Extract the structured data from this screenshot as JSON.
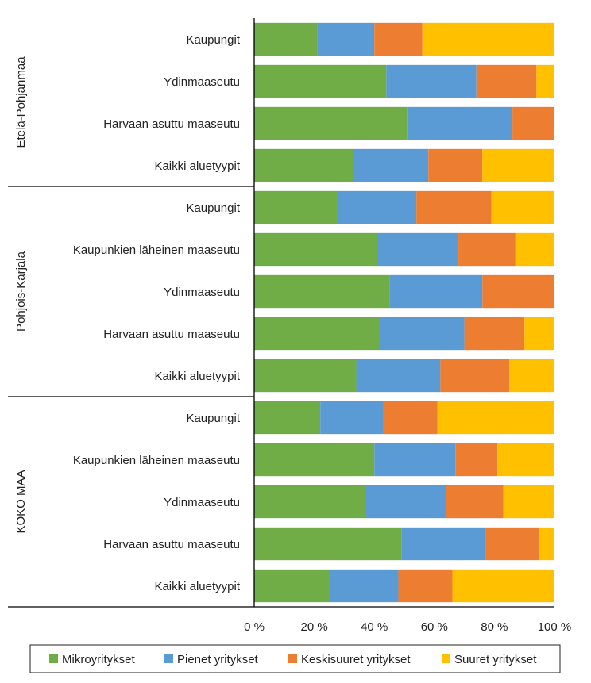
{
  "chart_data": {
    "type": "bar",
    "orientation": "horizontal",
    "stacked": "percent",
    "xlim": [
      0,
      100
    ],
    "x_ticks": [
      "0 %",
      "20 %",
      "40 %",
      "60 %",
      "80 %",
      "100 %"
    ],
    "legend_position": "bottom",
    "groups": [
      {
        "name": "Etelä-Pohjanmaa",
        "categories": [
          "Kaupungit",
          "Ydinmaaseutu",
          "Harvaan asuttu maaseutu",
          "Kaikki aluetyypit"
        ]
      },
      {
        "name": "Pohjois-Karjala",
        "categories": [
          "Kaupungit",
          "Kaupunkien läheinen maaseutu",
          "Ydinmaaseutu",
          "Harvaan asuttu maaseutu",
          "Kaikki aluetyypit"
        ]
      },
      {
        "name": "KOKO MAA",
        "categories": [
          "Kaupungit",
          "Kaupunkien läheinen maaseutu",
          "Ydinmaaseutu",
          "Harvaan asuttu maaseutu",
          "Kaikki aluetyypit"
        ]
      }
    ],
    "series": [
      {
        "name": "Mikroyritykset",
        "color": "#70ad47",
        "values": [
          21,
          44,
          51,
          33,
          28,
          41,
          45,
          42,
          34,
          22,
          40,
          37,
          49,
          25
        ]
      },
      {
        "name": "Pienet yritykset",
        "color": "#5b9bd5",
        "values": [
          19,
          30,
          35,
          25,
          26,
          27,
          31,
          28,
          28,
          21,
          27,
          27,
          28,
          23
        ]
      },
      {
        "name": "Keskisuuret yritykset",
        "color": "#ed7d31",
        "values": [
          16,
          20,
          14,
          18,
          25,
          19,
          24,
          20,
          23,
          18,
          14,
          19,
          18,
          18
        ]
      },
      {
        "name": "Suuret yritykset",
        "color": "#ffc000",
        "values": [
          44,
          6,
          0,
          24,
          21,
          13,
          0,
          10,
          15,
          39,
          19,
          17,
          5,
          34
        ]
      }
    ]
  }
}
